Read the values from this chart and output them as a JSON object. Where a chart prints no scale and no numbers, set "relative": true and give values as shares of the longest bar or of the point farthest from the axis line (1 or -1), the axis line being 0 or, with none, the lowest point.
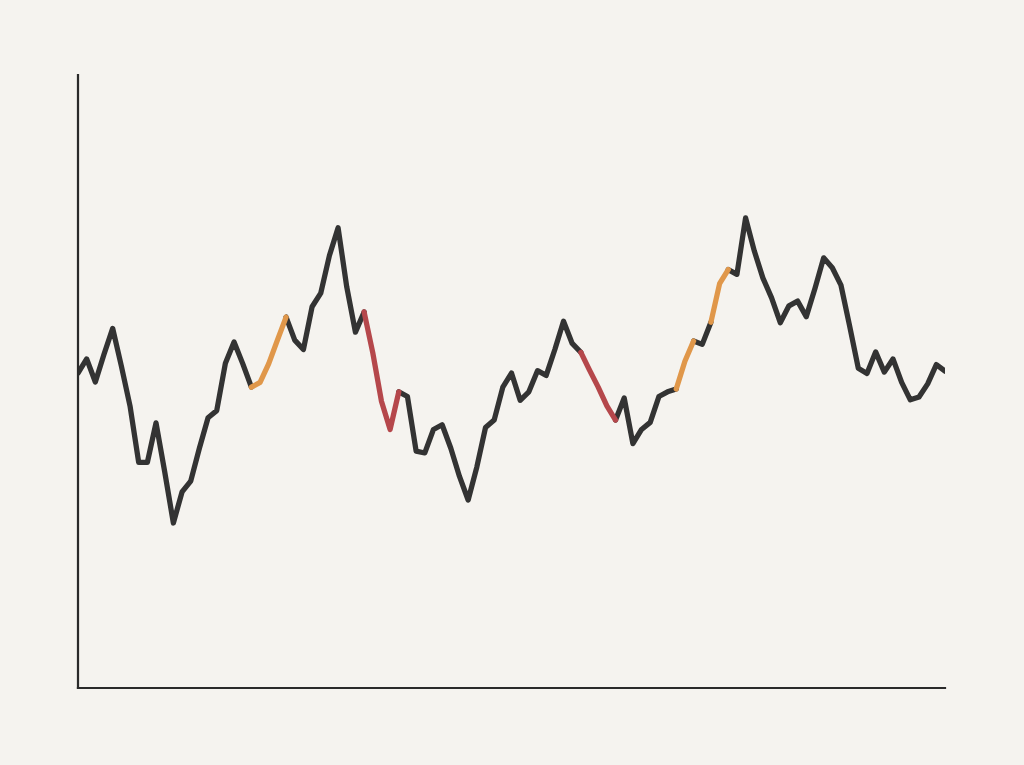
{
  "chart_data": {
    "type": "line",
    "relative": true,
    "line_style": "solid",
    "marker": "none",
    "categories": [
      null,
      null,
      null,
      null,
      null,
      null,
      null,
      null,
      null,
      null,
      null,
      null,
      null,
      null,
      null,
      null,
      null,
      null,
      null,
      null,
      null,
      null,
      null,
      null,
      null,
      null,
      null,
      null,
      null,
      null,
      null,
      null,
      null,
      null,
      null,
      null,
      null,
      null,
      null,
      null,
      null,
      null,
      null,
      null,
      null,
      null,
      null,
      null,
      null,
      null,
      null,
      null,
      null,
      null,
      null,
      null,
      null,
      null,
      null,
      null,
      null,
      null,
      null,
      null,
      null,
      null,
      null,
      null,
      null,
      null,
      null,
      null,
      null,
      null,
      null,
      null,
      null,
      null,
      null,
      null,
      null,
      null,
      null,
      null,
      null,
      null,
      null,
      null,
      null,
      null,
      null,
      null,
      null,
      null,
      null,
      null,
      null,
      null,
      null,
      null,
      null
    ],
    "series": [
      {
        "color": "#333333",
        "values": [
          0.67,
          0.7,
          0.651,
          0.71,
          0.765,
          0.685,
          0.6,
          0.48,
          0.48,
          0.564,
          0.46,
          0.351,
          0.417,
          0.44,
          0.51,
          0.575,
          0.59,
          0.691,
          0.736,
          0.69,
          0.64,
          null,
          null,
          null,
          0.789,
          0.74,
          0.72,
          0.811,
          0.84,
          0.92,
          0.979,
          0.853,
          0.757,
          0.8,
          null,
          null,
          null,
          0.63,
          0.62,
          0.504,
          0.5,
          0.55,
          0.56,
          0.51,
          0.45,
          0.4,
          0.47,
          0.554,
          0.57,
          0.64,
          0.67,
          0.612,
          0.63,
          0.675,
          0.665,
          0.72,
          0.78,
          0.733,
          0.714,
          null,
          null,
          null,
          0.57,
          0.617,
          0.52,
          0.55,
          0.565,
          0.62,
          0.63,
          0.636,
          null,
          0.738,
          0.731,
          0.778,
          null,
          0.89,
          0.88,
          1.0,
          0.93,
          0.872,
          0.83,
          0.777,
          0.813,
          0.823,
          0.79,
          0.85,
          0.915,
          0.894,
          0.857,
          0.77,
          0.68,
          0.669,
          0.715,
          0.672,
          0.7,
          0.65,
          0.613,
          0.619,
          0.647,
          0.688,
          0.674
        ]
      },
      {
        "color": "#e0974a",
        "values": [
          null,
          null,
          null,
          null,
          null,
          null,
          null,
          null,
          null,
          null,
          null,
          null,
          null,
          null,
          null,
          null,
          null,
          null,
          null,
          null,
          0.64,
          0.65,
          0.69,
          0.74,
          0.789,
          null,
          null,
          null,
          null,
          null,
          null,
          null,
          null,
          null,
          null,
          null,
          null,
          null,
          null,
          null,
          null,
          null,
          null,
          null,
          null,
          null,
          null,
          null,
          null,
          null,
          null,
          null,
          null,
          null,
          null,
          null,
          null,
          null,
          null,
          null,
          null,
          null,
          null,
          null,
          null,
          null,
          null,
          null,
          null,
          0.636,
          0.695,
          0.738,
          null,
          0.778,
          0.86,
          0.89,
          null,
          null,
          null,
          null,
          null,
          null,
          null,
          null,
          null,
          null,
          null,
          null,
          null,
          null,
          null,
          null,
          null,
          null,
          null,
          null,
          null,
          null,
          null,
          null,
          null
        ]
      },
      {
        "color": "#b5474b",
        "values": [
          null,
          null,
          null,
          null,
          null,
          null,
          null,
          null,
          null,
          null,
          null,
          null,
          null,
          null,
          null,
          null,
          null,
          null,
          null,
          null,
          null,
          null,
          null,
          null,
          null,
          null,
          null,
          null,
          null,
          null,
          null,
          null,
          null,
          0.8,
          0.713,
          0.61,
          0.55,
          0.63,
          null,
          null,
          null,
          null,
          null,
          null,
          null,
          null,
          null,
          null,
          null,
          null,
          null,
          null,
          null,
          null,
          null,
          null,
          null,
          null,
          0.714,
          0.676,
          0.64,
          0.6,
          0.57,
          null,
          null,
          null,
          null,
          null,
          null,
          null,
          null,
          null,
          null,
          null,
          null,
          null,
          null,
          null,
          null,
          null,
          null,
          null,
          null,
          null,
          null,
          null,
          null,
          null,
          null,
          null,
          null,
          null,
          null,
          null,
          null,
          null,
          null,
          null,
          null,
          null,
          null
        ]
      }
    ]
  }
}
